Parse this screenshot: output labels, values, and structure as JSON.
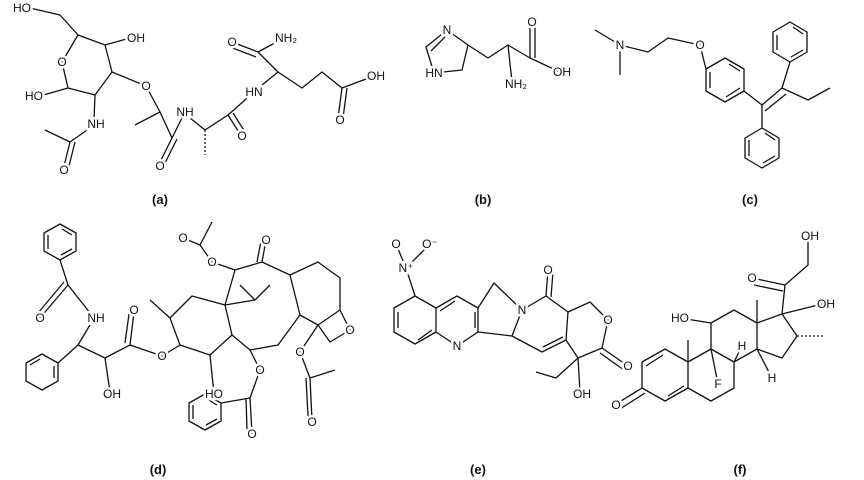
{
  "panels": [
    {
      "label": "(a)",
      "atoms": [
        "HO",
        "OH",
        "O",
        "HO",
        "O",
        "NH",
        "O",
        "O",
        "NH",
        "O",
        "HN",
        "O",
        "NH₂",
        "O",
        "OH"
      ]
    },
    {
      "label": "(b)",
      "atoms": [
        "N",
        "HN",
        "O",
        "OH",
        "NH₂"
      ]
    },
    {
      "label": "(c)",
      "atoms": [
        "N",
        "O"
      ]
    },
    {
      "label": "(d)",
      "atoms": [
        "O",
        "NH",
        "OH",
        "O",
        "O",
        "O",
        "O",
        "O",
        "O",
        "HO",
        "O",
        "O",
        "O",
        "O"
      ]
    },
    {
      "label": "(e)",
      "atoms": [
        "O",
        "N⁺",
        "O⁻",
        "N",
        "N",
        "O",
        "O",
        "O",
        "OH"
      ]
    },
    {
      "label": "(f)",
      "atoms": [
        "OH",
        "O",
        "OH",
        "HO",
        "O",
        "F",
        "H",
        "H"
      ]
    }
  ]
}
